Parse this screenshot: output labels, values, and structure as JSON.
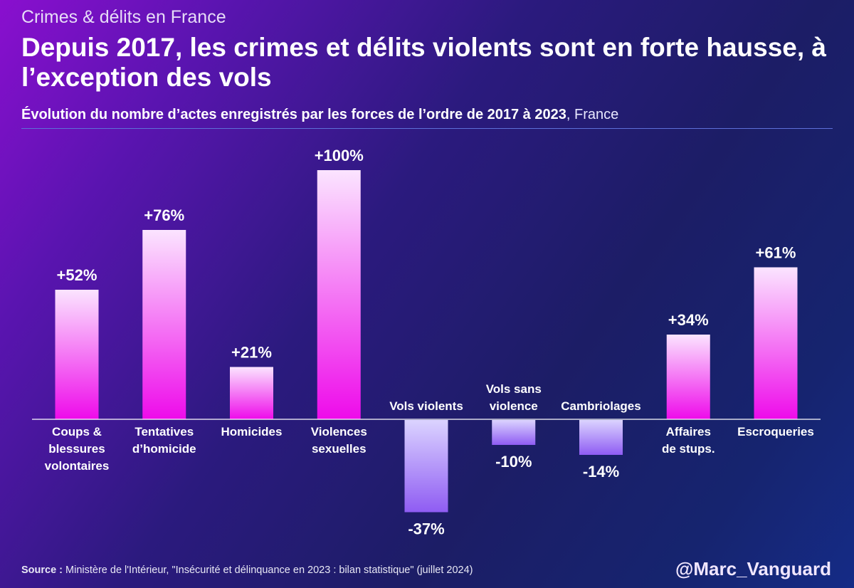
{
  "header": {
    "kicker": "Crimes & délits en France",
    "title": "Depuis 2017, les crimes et délits violents sont en forte hausse, à l’exception des vols",
    "subtitle_bold": "Évolution du nombre d’actes enregistrés par les forces de l’ordre de 2017 à 2023",
    "subtitle_rest": ", France"
  },
  "footer": {
    "source_label": "Source :",
    "source_text": " Ministère de l'Intérieur, \"Insécurité et délinquance en 2023 : bilan statistique\" (juillet 2024)",
    "handle": "@Marc_Vanguard"
  },
  "colors": {
    "bar_top": "#fbe4ff",
    "bar_bottom": "#ee0bea",
    "neg_top": "#dbd3ff",
    "neg_bottom": "#8f5cf3",
    "baseline": "#ffffff"
  },
  "chart_data": {
    "type": "bar",
    "title": "Évolution du nombre d’actes enregistrés par les forces de l’ordre de 2017 à 2023",
    "xlabel": "",
    "ylabel": "",
    "ylim": [
      -40,
      100
    ],
    "grid": false,
    "categories": [
      [
        "Coups &",
        "blessures",
        "volontaires"
      ],
      [
        "Tentatives",
        "d’homicide"
      ],
      [
        "Homicides"
      ],
      [
        "Violences",
        "sexuelles"
      ],
      [
        "Vols violents"
      ],
      [
        "Vols sans",
        "violence"
      ],
      [
        "Cambriolages"
      ],
      [
        "Affaires",
        "de stups."
      ],
      [
        "Escroqueries"
      ]
    ],
    "values": [
      52,
      76,
      21,
      100,
      -37,
      -10,
      -14,
      34,
      61
    ],
    "labels": [
      "+52%",
      "+76%",
      "+21%",
      "+100%",
      "-37%",
      "-10%",
      "-14%",
      "+34%",
      "+61%"
    ]
  }
}
